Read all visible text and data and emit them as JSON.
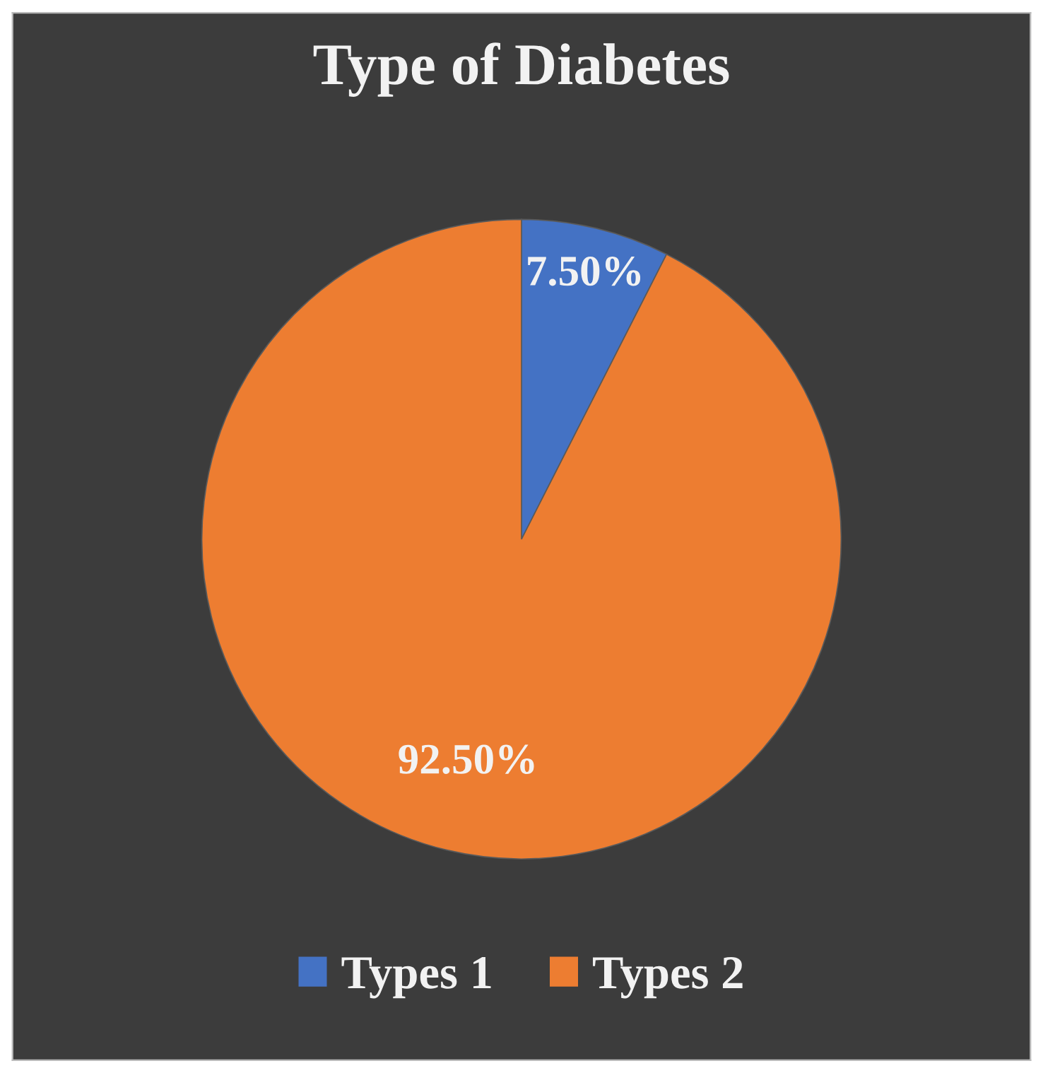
{
  "chart_data": {
    "type": "pie",
    "title": "Type of Diabetes",
    "categories": [
      "Types 1",
      "Types 2"
    ],
    "values": [
      7.5,
      92.5
    ],
    "colors": [
      "#4472c4",
      "#ed7d31"
    ],
    "value_labels": [
      "7.50%",
      "92.50%"
    ],
    "legend": "bottom"
  }
}
